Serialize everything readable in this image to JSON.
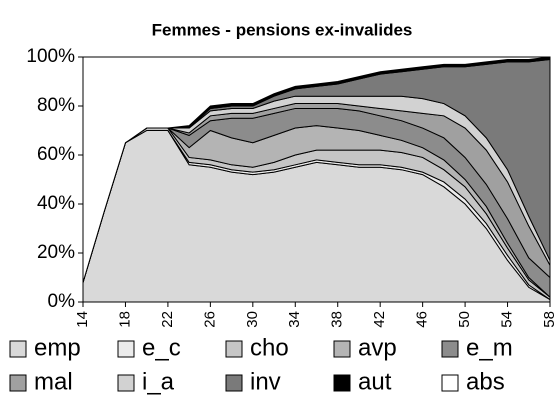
{
  "chart_data": {
    "type": "stacked_area",
    "title": "Femmes - pensions ex-invalides",
    "x": [
      14,
      16,
      18,
      20,
      22,
      24,
      26,
      28,
      30,
      32,
      34,
      36,
      38,
      40,
      42,
      44,
      46,
      48,
      50,
      52,
      54,
      56,
      58
    ],
    "xlim": [
      14,
      58
    ],
    "xticks": [
      14,
      18,
      22,
      26,
      30,
      34,
      38,
      42,
      46,
      50,
      54,
      58
    ],
    "ylim": [
      0,
      100
    ],
    "yticks": [
      {
        "value": 0,
        "label": "0%"
      },
      {
        "value": 20,
        "label": "20%"
      },
      {
        "value": 40,
        "label": "40%"
      },
      {
        "value": 60,
        "label": "60%"
      },
      {
        "value": 80,
        "label": "80%"
      },
      {
        "value": 100,
        "label": "100%"
      }
    ],
    "series": [
      {
        "name": "emp",
        "color": "#d9d9d9",
        "values": [
          8,
          37,
          65,
          70,
          70,
          56,
          55,
          53,
          52,
          53,
          55,
          57,
          56,
          55,
          55,
          54,
          52,
          47,
          40,
          30,
          17,
          6,
          1
        ]
      },
      {
        "name": "e_c",
        "color": "#ebebeb",
        "values": [
          0,
          0,
          0,
          0,
          0,
          1,
          1,
          1,
          1,
          1,
          1,
          1,
          1,
          1,
          1,
          1,
          1,
          2,
          2,
          2,
          2,
          1,
          0
        ]
      },
      {
        "name": "cho",
        "color": "#c6c6c6",
        "values": [
          0,
          0,
          0,
          1,
          1,
          2,
          2,
          2,
          2,
          3,
          4,
          4,
          5,
          6,
          6,
          6,
          6,
          5,
          5,
          4,
          3,
          2,
          1
        ]
      },
      {
        "name": "avp",
        "color": "#b4b4b4",
        "values": [
          0,
          0,
          0,
          0,
          0,
          4,
          12,
          11,
          10,
          11,
          11,
          10,
          9,
          8,
          6,
          5,
          4,
          4,
          3,
          3,
          2,
          1,
          0
        ]
      },
      {
        "name": "e_m",
        "color": "#8c8c8c",
        "values": [
          0,
          0,
          0,
          0,
          0,
          5,
          4,
          8,
          10,
          9,
          8,
          7,
          8,
          8,
          8,
          8,
          8,
          9,
          9,
          9,
          10,
          8,
          8
        ]
      },
      {
        "name": "mal",
        "color": "#a0a0a0",
        "values": [
          0,
          0,
          0,
          0,
          0,
          1,
          2,
          2,
          2,
          2,
          2,
          2,
          2,
          2,
          3,
          4,
          6,
          9,
          12,
          14,
          15,
          13,
          5
        ]
      },
      {
        "name": "i_a",
        "color": "#d2d2d2",
        "values": [
          0,
          0,
          0,
          0,
          0,
          2,
          2,
          2,
          2,
          3,
          3,
          3,
          3,
          4,
          5,
          6,
          6,
          5,
          5,
          5,
          5,
          4,
          2
        ]
      },
      {
        "name": "inv",
        "color": "#7a7a7a",
        "values": [
          0,
          0,
          0,
          0,
          0,
          0,
          1,
          1,
          1,
          2,
          3,
          4,
          5,
          7,
          9,
          10,
          12,
          15,
          20,
          30,
          44,
          63,
          82
        ]
      },
      {
        "name": "aut",
        "color": "#000000",
        "values": [
          0,
          0,
          0,
          0,
          0,
          1,
          1,
          1,
          1,
          1,
          1,
          1,
          1,
          1,
          1,
          1,
          1,
          1,
          1,
          1,
          1,
          1,
          1
        ]
      },
      {
        "name": "abs",
        "color": "#ffffff",
        "values": [
          92,
          63,
          35,
          29,
          29,
          28,
          20,
          19,
          19,
          15,
          12,
          11,
          10,
          8,
          6,
          5,
          4,
          3,
          3,
          2,
          1,
          1,
          0
        ]
      }
    ]
  }
}
